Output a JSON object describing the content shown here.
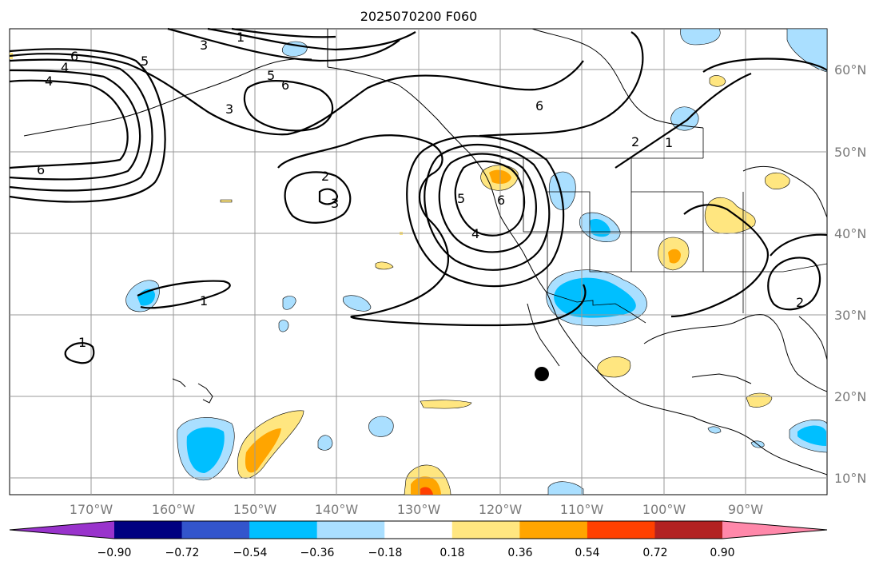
{
  "title": "2025070200 F060",
  "lat_labels": [
    "60°N",
    "50°N",
    "40°N",
    "30°N",
    "20°N",
    "10°N"
  ],
  "lon_labels": [
    "170°W",
    "160°W",
    "150°W",
    "140°W",
    "130°W",
    "120°W",
    "110°W",
    "100°W",
    "90°W"
  ],
  "colorbar": {
    "ticks": [
      "−0.90",
      "−0.72",
      "−0.54",
      "−0.36",
      "−0.18",
      "0.18",
      "0.36",
      "0.54",
      "0.72",
      "0.90"
    ],
    "colors": [
      "#9933cc",
      "#000080",
      "#3355cc",
      "#00bfff",
      "#aadfff",
      "#ffffff",
      "#ffe680",
      "#ffa500",
      "#ff4000",
      "#b22222",
      "#ff88aa"
    ]
  },
  "contour_labels": [
    "1",
    "2",
    "3",
    "4",
    "5",
    "6"
  ],
  "colors": {
    "grid": "#9a9a9a",
    "coast": "#000000",
    "contour": "#000000",
    "marker": "#000000"
  }
}
